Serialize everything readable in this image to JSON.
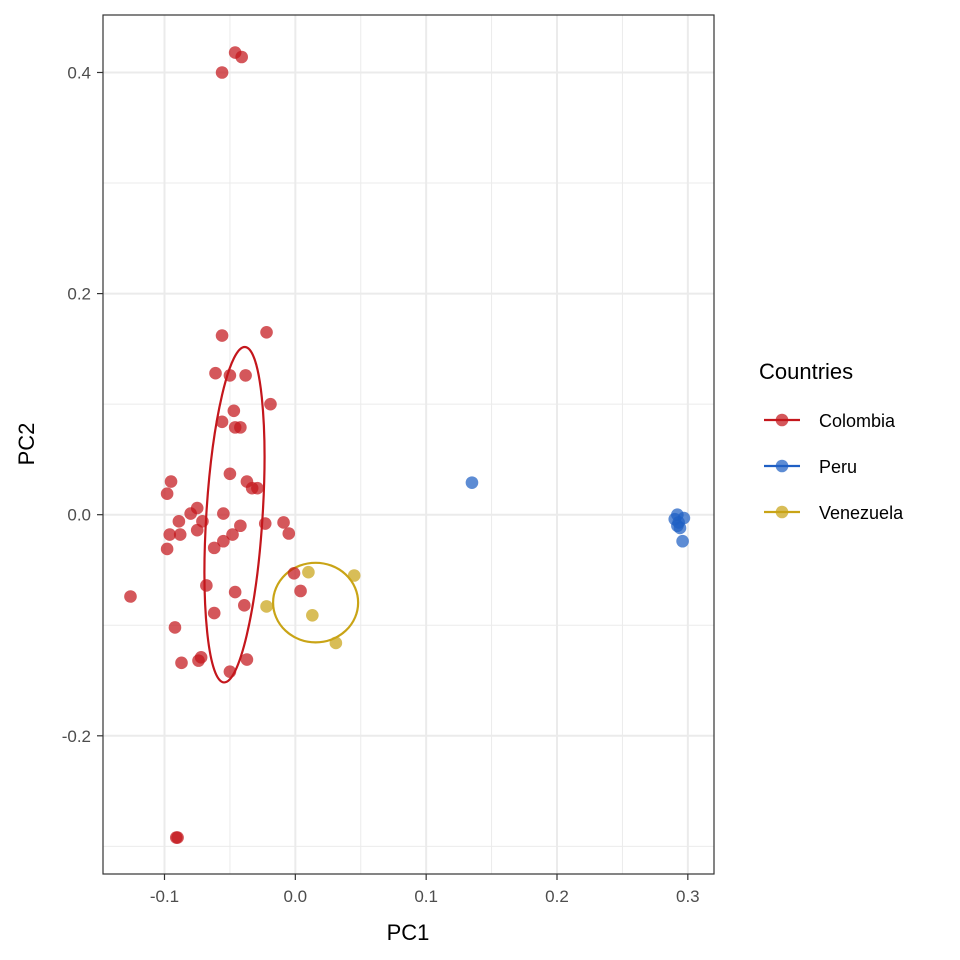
{
  "chart_data": {
    "type": "scatter",
    "title": "",
    "xlabel": "PC1",
    "ylabel": "PC2",
    "xlim": [
      -0.147,
      0.32
    ],
    "ylim": [
      -0.325,
      0.452
    ],
    "x_ticks": [
      -0.1,
      0.0,
      0.1,
      0.2,
      0.3
    ],
    "x_tick_labels": [
      "-0.1",
      "0.0",
      "0.1",
      "0.2",
      "0.3"
    ],
    "y_ticks": [
      -0.2,
      0.0,
      0.2,
      0.4
    ],
    "y_tick_labels": [
      "-0.2",
      "0.0",
      "0.2",
      "0.4"
    ],
    "grid": true,
    "legend": {
      "title": "Countries",
      "placement": "right"
    },
    "series": [
      {
        "name": "Colombia",
        "color": "#C4161C",
        "points": [
          [
            -0.046,
            0.418
          ],
          [
            -0.041,
            0.414
          ],
          [
            -0.056,
            0.4
          ],
          [
            -0.056,
            0.162
          ],
          [
            -0.022,
            0.165
          ],
          [
            -0.061,
            0.128
          ],
          [
            -0.05,
            0.126
          ],
          [
            -0.038,
            0.126
          ],
          [
            -0.019,
            0.1
          ],
          [
            -0.047,
            0.094
          ],
          [
            -0.056,
            0.084
          ],
          [
            -0.046,
            0.079
          ],
          [
            -0.042,
            0.079
          ],
          [
            -0.05,
            0.037
          ],
          [
            -0.037,
            0.03
          ],
          [
            -0.033,
            0.024
          ],
          [
            -0.029,
            0.024
          ],
          [
            -0.095,
            0.03
          ],
          [
            -0.098,
            0.019
          ],
          [
            -0.075,
            0.006
          ],
          [
            -0.08,
            0.001
          ],
          [
            -0.055,
            0.001
          ],
          [
            -0.089,
            -0.006
          ],
          [
            -0.071,
            -0.006
          ],
          [
            -0.023,
            -0.008
          ],
          [
            -0.009,
            -0.007
          ],
          [
            -0.042,
            -0.01
          ],
          [
            -0.075,
            -0.014
          ],
          [
            -0.096,
            -0.018
          ],
          [
            -0.088,
            -0.018
          ],
          [
            -0.048,
            -0.018
          ],
          [
            -0.005,
            -0.017
          ],
          [
            -0.055,
            -0.024
          ],
          [
            -0.098,
            -0.031
          ],
          [
            -0.062,
            -0.03
          ],
          [
            -0.001,
            -0.053
          ],
          [
            -0.068,
            -0.064
          ],
          [
            -0.046,
            -0.07
          ],
          [
            0.004,
            -0.069
          ],
          [
            -0.126,
            -0.074
          ],
          [
            -0.039,
            -0.082
          ],
          [
            -0.062,
            -0.089
          ],
          [
            -0.092,
            -0.102
          ],
          [
            -0.072,
            -0.129
          ],
          [
            -0.074,
            -0.132
          ],
          [
            -0.087,
            -0.134
          ],
          [
            -0.037,
            -0.131
          ],
          [
            -0.05,
            -0.142
          ],
          [
            -0.091,
            -0.292
          ],
          [
            -0.09,
            -0.292
          ]
        ],
        "ellipse": {
          "cx": -0.0465,
          "cy": 0.0,
          "rx": 0.0215,
          "ry": 0.152,
          "angle_deg": 3.6
        }
      },
      {
        "name": "Peru",
        "color": "#1F5FC4",
        "points": [
          [
            0.135,
            0.029
          ],
          [
            0.292,
            0.0
          ],
          [
            0.297,
            -0.003
          ],
          [
            0.29,
            -0.004
          ],
          [
            0.293,
            -0.007
          ],
          [
            0.292,
            -0.01
          ],
          [
            0.294,
            -0.012
          ],
          [
            0.296,
            -0.024
          ]
        ]
      },
      {
        "name": "Venezuela",
        "color": "#C9A416",
        "points": [
          [
            0.01,
            -0.052
          ],
          [
            0.045,
            -0.055
          ],
          [
            -0.022,
            -0.083
          ],
          [
            0.013,
            -0.091
          ],
          [
            0.031,
            -0.116
          ]
        ],
        "ellipse": {
          "cx": 0.0155,
          "cy": -0.0795,
          "rx": 0.0325,
          "ry": 0.036,
          "angle_deg": 0
        }
      }
    ]
  }
}
